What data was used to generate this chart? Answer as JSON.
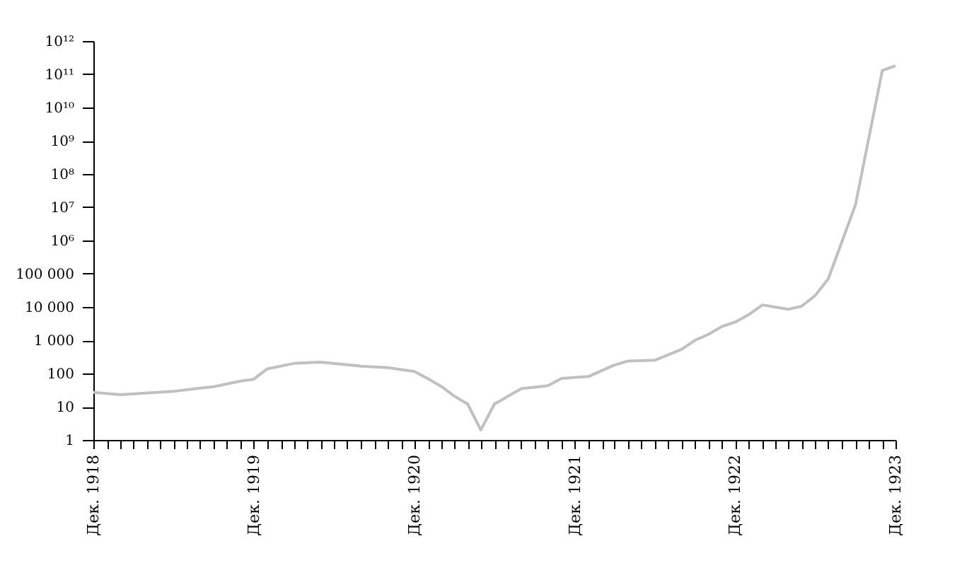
{
  "chart_data": {
    "type": "line",
    "x": [
      "1918-12",
      "1919-02",
      "1919-06",
      "1919-08",
      "1919-09",
      "1919-11",
      "1919-12",
      "1920-01",
      "1920-03",
      "1920-05",
      "1920-08",
      "1920-10",
      "1920-12",
      "1921-01",
      "1921-02",
      "1921-03",
      "1921-04",
      "1921-05",
      "1921-06",
      "1921-08",
      "1921-10",
      "1921-11",
      "1922-01",
      "1922-03",
      "1922-04",
      "1922-06",
      "1922-08",
      "1922-09",
      "1922-10",
      "1922-11",
      "1922-12",
      "1923-01",
      "1923-02",
      "1923-04",
      "1923-05",
      "1923-06",
      "1923-07",
      "1923-09",
      "1923-11",
      "1923-12"
    ],
    "series": [
      {
        "color": "#c0c0c0",
        "values": [
          27,
          23,
          29,
          36,
          40,
          59,
          67,
          138,
          200,
          220,
          166,
          150,
          115,
          69,
          40,
          21,
          12,
          2,
          12,
          35,
          43,
          71,
          81,
          179,
          236,
          250,
          530,
          1000,
          1500,
          2600,
          3500,
          5900,
          11500,
          8500,
          10500,
          22000,
          70000,
          12000000,
          130000000000,
          180000000000
        ]
      }
    ],
    "log": "y",
    "ylim": [
      1,
      1000000000000
    ],
    "yticks": [
      1,
      10,
      100,
      {
        "value": 1000,
        "label": "1 000"
      },
      {
        "value": 10000,
        "label": "10 000"
      },
      {
        "value": 100000,
        "label": "100 000"
      },
      {
        "value": 1000000,
        "label": "10⁶"
      },
      {
        "value": 10000000,
        "label": "10⁷"
      },
      {
        "value": 100000000,
        "label": "10⁸"
      },
      {
        "value": 1000000000,
        "label": "10⁹"
      },
      {
        "value": 10000000000,
        "label": "10¹⁰"
      },
      {
        "value": 100000000000,
        "label": "10¹¹"
      },
      {
        "value": 1000000000000,
        "label": "10¹²"
      }
    ],
    "xlim": [
      "1918-12",
      "1923-12"
    ],
    "xticks": [
      {
        "value": "1918-12",
        "label": "Дек. 1918"
      },
      {
        "value": "1919-01",
        "label": null
      },
      {
        "value": "1919-02",
        "label": null
      },
      {
        "value": "1919-03",
        "label": null
      },
      {
        "value": "1919-04",
        "label": null
      },
      {
        "value": "1919-05",
        "label": null
      },
      {
        "value": "1919-06",
        "label": null
      },
      {
        "value": "1919-07",
        "label": null
      },
      {
        "value": "1919-08",
        "label": null
      },
      {
        "value": "1919-09",
        "label": null
      },
      {
        "value": "1919-10",
        "label": null
      },
      {
        "value": "1919-11",
        "label": null
      },
      {
        "value": "1919-12",
        "label": "Дек. 1919"
      },
      {
        "value": "1920-01",
        "label": null
      },
      {
        "value": "1920-02",
        "label": null
      },
      {
        "value": "1920-03",
        "label": null
      },
      {
        "value": "1920-04",
        "label": null
      },
      {
        "value": "1920-05",
        "label": null
      },
      {
        "value": "1920-06",
        "label": null
      },
      {
        "value": "1920-07",
        "label": null
      },
      {
        "value": "1920-08",
        "label": null
      },
      {
        "value": "1920-09",
        "label": null
      },
      {
        "value": "1920-10",
        "label": null
      },
      {
        "value": "1920-11",
        "label": null
      },
      {
        "value": "1920-12",
        "label": "Дек. 1920"
      },
      {
        "value": "1921-01",
        "label": null
      },
      {
        "value": "1921-02",
        "label": null
      },
      {
        "value": "1921-03",
        "label": null
      },
      {
        "value": "1921-04",
        "label": null
      },
      {
        "value": "1921-05",
        "label": null
      },
      {
        "value": "1921-06",
        "label": null
      },
      {
        "value": "1921-07",
        "label": null
      },
      {
        "value": "1921-08",
        "label": null
      },
      {
        "value": "1921-09",
        "label": null
      },
      {
        "value": "1921-10",
        "label": null
      },
      {
        "value": "1921-11",
        "label": null
      },
      {
        "value": "1921-12",
        "label": "Дек. 1921"
      },
      {
        "value": "1922-01",
        "label": null
      },
      {
        "value": "1922-02",
        "label": null
      },
      {
        "value": "1922-03",
        "label": null
      },
      {
        "value": "1922-04",
        "label": null
      },
      {
        "value": "1922-05",
        "label": null
      },
      {
        "value": "1922-06",
        "label": null
      },
      {
        "value": "1922-07",
        "label": null
      },
      {
        "value": "1922-08",
        "label": null
      },
      {
        "value": "1922-09",
        "label": null
      },
      {
        "value": "1922-10",
        "label": null
      },
      {
        "value": "1922-11",
        "label": null
      },
      {
        "value": "1922-12",
        "label": "Дек. 1922"
      },
      {
        "value": "1923-01",
        "label": null
      },
      {
        "value": "1923-02",
        "label": null
      },
      {
        "value": "1923-03",
        "label": null
      },
      {
        "value": "1923-04",
        "label": null
      },
      {
        "value": "1923-05",
        "label": null
      },
      {
        "value": "1923-06",
        "label": null
      },
      {
        "value": "1923-07",
        "label": null
      },
      {
        "value": "1923-08",
        "label": null
      },
      {
        "value": "1923-09",
        "label": null
      },
      {
        "value": "1923-10",
        "label": null
      },
      {
        "value": "1923-11",
        "label": null
      },
      {
        "value": "1923-12",
        "label": "Дек. 1923"
      }
    ],
    "grid": false,
    "marker": "none",
    "line_style": "solid"
  }
}
